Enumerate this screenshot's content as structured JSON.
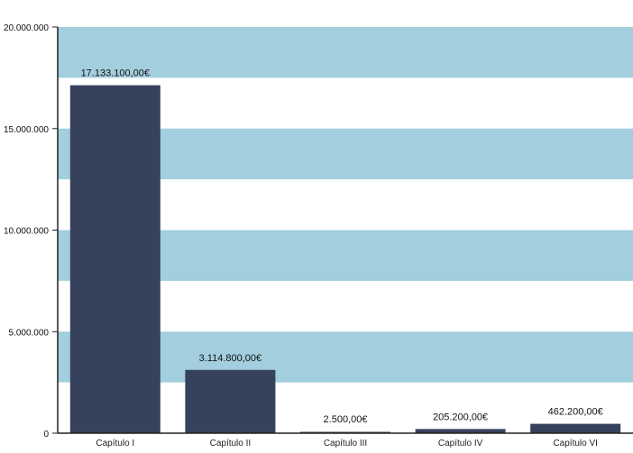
{
  "chart_data": {
    "type": "bar",
    "categories": [
      "Capítulo I",
      "Capítulo II",
      "Capítulo III",
      "Capítulo IV",
      "Capítulo VI"
    ],
    "values": [
      17133100,
      3114800,
      2500,
      205200,
      462200
    ],
    "data_labels": [
      "17.133.100,00€",
      "3.114.800,00€",
      "2.500,00€",
      "205.200,00€",
      "462.200,00€"
    ],
    "title": "",
    "xlabel": "",
    "ylabel": "",
    "ylim": [
      0,
      20000000
    ],
    "yticks": [
      0,
      5000000,
      10000000,
      15000000,
      20000000
    ],
    "ytick_labels": [
      "0",
      "5.000.000",
      "10.000.000",
      "15.000.000",
      "20.000.000"
    ],
    "grid": "alternating horizontal bands",
    "legend": "none",
    "colors": {
      "bar": "#36415c",
      "band": "#a2cedd",
      "axis": "#222222"
    }
  }
}
